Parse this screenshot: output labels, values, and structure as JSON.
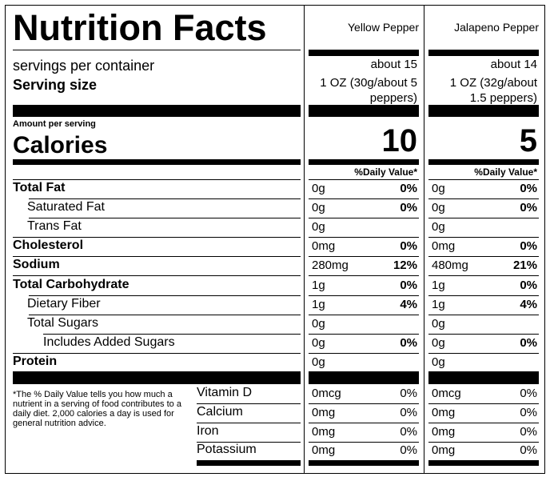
{
  "title": "Nutrition Facts",
  "columns": [
    "Yellow Pepper",
    "Jalapeno Pepper"
  ],
  "servings_label": "servings per container",
  "serving_size_label": "Serving size",
  "servings": [
    "about 15",
    "about 14"
  ],
  "serving_sizes": [
    [
      "1 OZ (30g/about 5",
      "peppers)"
    ],
    [
      "1 OZ (32g/about",
      "1.5 peppers)"
    ]
  ],
  "amount_per_serving": "Amount per serving",
  "calories_label": "Calories",
  "calories": [
    10,
    5
  ],
  "dv_header": "%Daily Value*",
  "nutrients": [
    {
      "label": "Total Fat",
      "values": [
        [
          "0g",
          "0%"
        ],
        [
          "0g",
          "0%"
        ]
      ]
    },
    {
      "label": "Saturated Fat",
      "values": [
        [
          "0g",
          "0%"
        ],
        [
          "0g",
          "0%"
        ]
      ]
    },
    {
      "label": "Trans Fat",
      "values": [
        [
          "0g"
        ],
        [
          "0g"
        ]
      ]
    },
    {
      "label": "Cholesterol",
      "values": [
        [
          "0mg",
          "0%"
        ],
        [
          "0mg",
          "0%"
        ]
      ]
    },
    {
      "label": "Sodium",
      "values": [
        [
          "280mg",
          "12%"
        ],
        [
          "480mg",
          "21%"
        ]
      ]
    },
    {
      "label": "Total Carbohydrate",
      "values": [
        [
          "1g",
          "0%"
        ],
        [
          "1g",
          "0%"
        ]
      ]
    },
    {
      "label": "Dietary Fiber",
      "values": [
        [
          "1g",
          "4%"
        ],
        [
          "1g",
          "4%"
        ]
      ]
    },
    {
      "label": "Total Sugars",
      "values": [
        [
          "0g"
        ],
        [
          "0g"
        ]
      ]
    },
    {
      "label": "Includes Added Sugars",
      "values": [
        [
          "0g",
          "0%"
        ],
        [
          "0g",
          "0%"
        ]
      ]
    },
    {
      "label": "Protein",
      "values": [
        [
          "0g"
        ],
        [
          "0g"
        ]
      ]
    }
  ],
  "footnote": "*The % Daily Value tells you how much a nutrient in a serving of food contributes to a daily diet. 2,000 calories a day is used for general nutrition advice.",
  "vitamins": [
    {
      "label": "Vitamin D",
      "values": [
        [
          "0mcg",
          "0%"
        ],
        [
          "0mcg",
          "0%"
        ]
      ]
    },
    {
      "label": "Calcium",
      "values": [
        [
          "0mg",
          "0%"
        ],
        [
          "0mg",
          "0%"
        ]
      ]
    },
    {
      "label": "Iron",
      "values": [
        [
          "0mg",
          "0%"
        ],
        [
          "0mg",
          "0%"
        ]
      ]
    },
    {
      "label": "Potassium",
      "values": [
        [
          "0mg",
          "0%"
        ],
        [
          "0mg",
          "0%"
        ]
      ]
    }
  ]
}
